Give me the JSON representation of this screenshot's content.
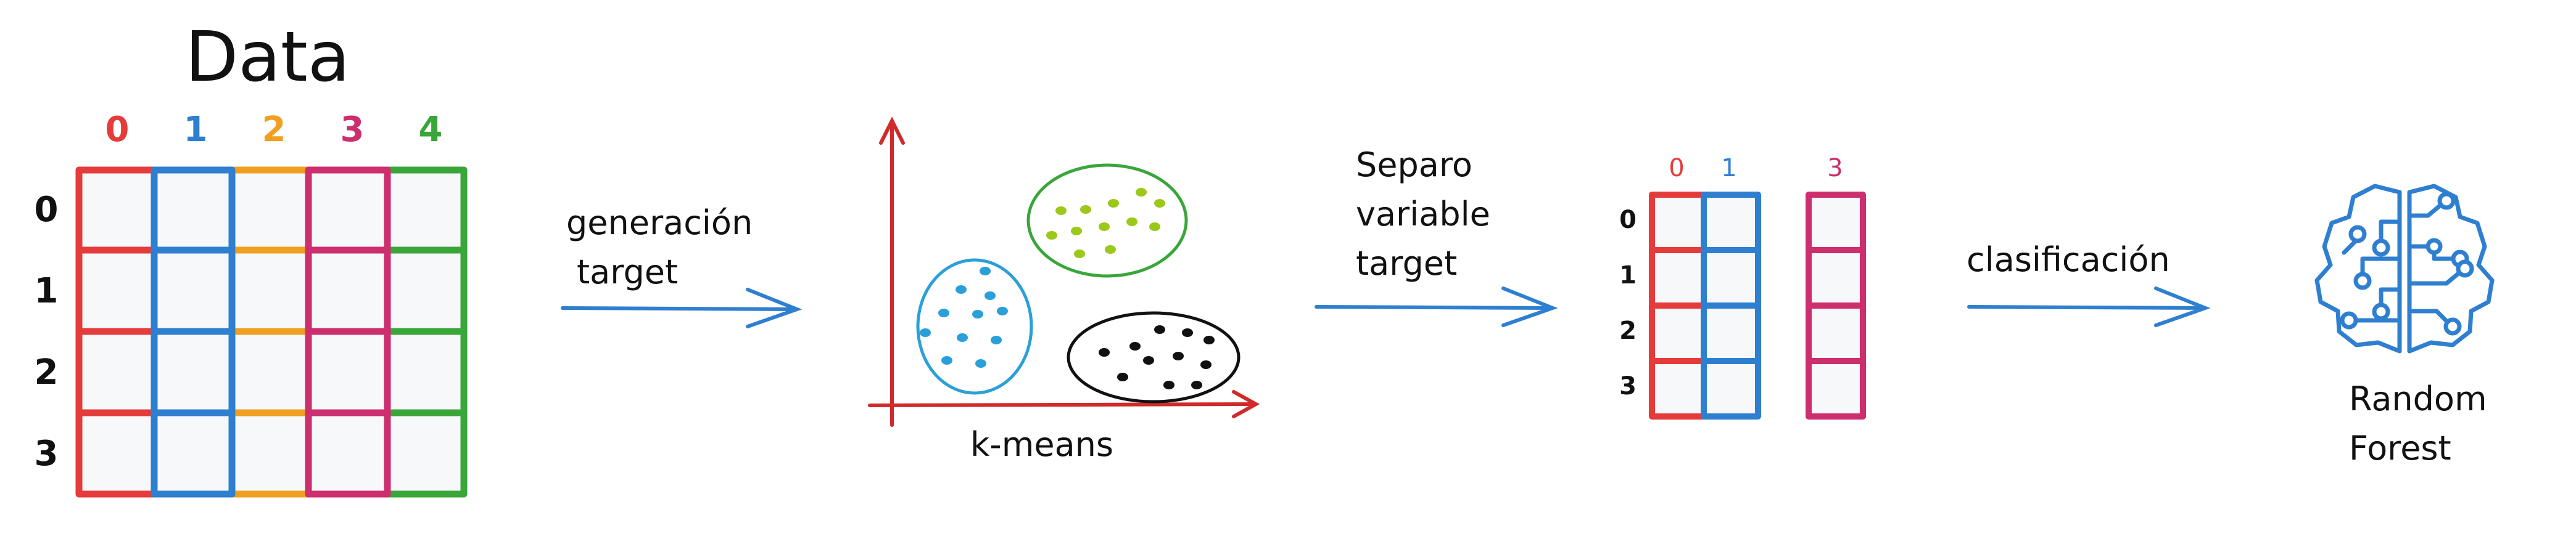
{
  "data_table": {
    "title": "Data",
    "columns": [
      {
        "label": "0",
        "color": "#e63b3b"
      },
      {
        "label": "1",
        "color": "#2f7fd0"
      },
      {
        "label": "2",
        "color": "#f0a020"
      },
      {
        "label": "3",
        "color": "#cc2e6e"
      },
      {
        "label": "4",
        "color": "#3aa63a"
      }
    ],
    "rows": [
      "0",
      "1",
      "2",
      "3"
    ]
  },
  "steps": {
    "generate": {
      "line1": "generación",
      "line2": "target"
    },
    "separate": {
      "line1": "Separo",
      "line2": "variable",
      "line3": "target"
    },
    "classify": {
      "line1": "clasificación"
    }
  },
  "kmeans": {
    "label": "k-means",
    "axis_color": "#d02a2a",
    "clusters": [
      {
        "name": "blue",
        "color": "#2aa0d8"
      },
      {
        "name": "green",
        "color": "#9cc81a",
        "outline": "#3aa63a"
      },
      {
        "name": "black",
        "color": "#111111"
      }
    ]
  },
  "subset_table": {
    "columns": [
      {
        "label": "0",
        "color": "#e63b3b"
      },
      {
        "label": "1",
        "color": "#2f7fd0"
      },
      {
        "label": "3",
        "color": "#cc2e6e"
      }
    ],
    "rows": [
      "0",
      "1",
      "2",
      "3"
    ]
  },
  "model": {
    "icon": "brain-circuit-icon",
    "line1": "Random",
    "line2": "Forest",
    "color": "#2f7fd0"
  },
  "arrow_color": "#2f7fd0"
}
